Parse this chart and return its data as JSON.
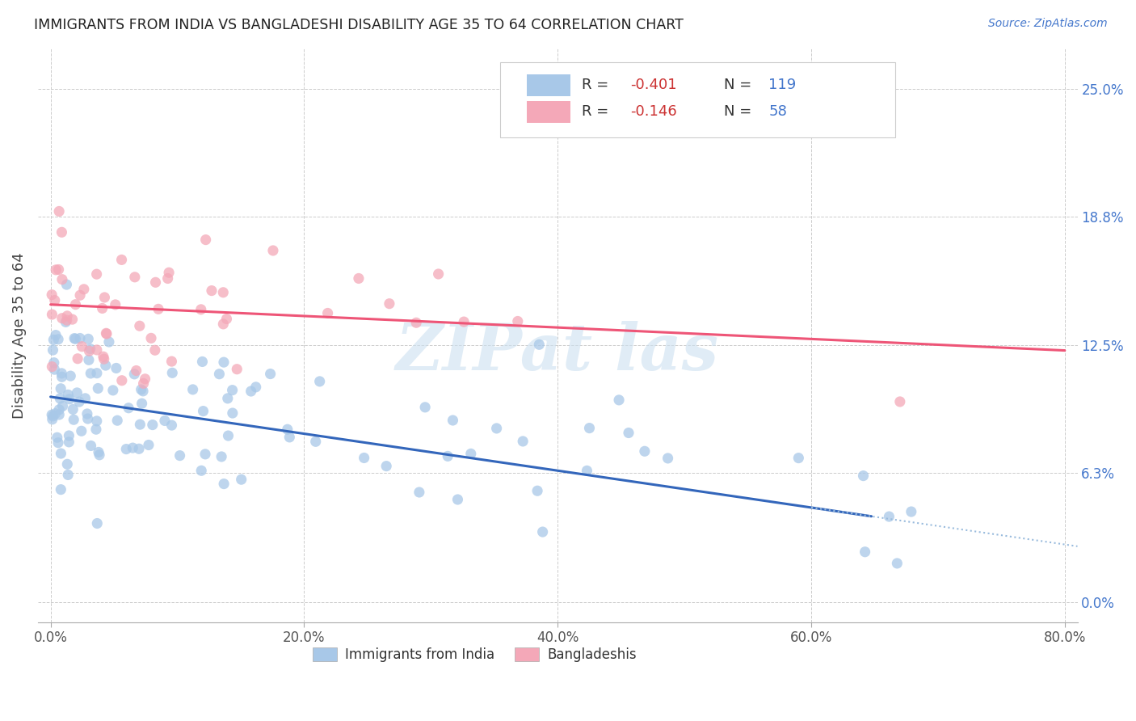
{
  "title": "IMMIGRANTS FROM INDIA VS BANGLADESHI DISABILITY AGE 35 TO 64 CORRELATION CHART",
  "source": "Source: ZipAtlas.com",
  "ylabel_label": "Disability Age 35 to 64",
  "legend_label1": "Immigrants from India",
  "legend_label2": "Bangladeshis",
  "legend_R1": "-0.401",
  "legend_N1": "119",
  "legend_R2": "-0.146",
  "legend_N2": "58",
  "color_india": "#a8c8e8",
  "color_bang": "#f4a8b8",
  "color_india_line": "#3366bb",
  "color_bang_line": "#ee5577",
  "color_dash_line": "#99bbdd",
  "background": "#ffffff",
  "x_ticks": [
    0,
    20,
    40,
    60,
    80
  ],
  "y_ticks": [
    0.0,
    6.3,
    12.5,
    18.8,
    25.0
  ],
  "xlim": [
    -1,
    81
  ],
  "ylim": [
    -1.0,
    27.0
  ],
  "india_reg_int": 10.0,
  "india_reg_slope": -0.09,
  "bang_reg_int": 14.5,
  "bang_reg_slope": -0.028,
  "watermark_text": "ZIPat las",
  "watermark_color": "#cce0f0",
  "watermark_alpha": 0.6,
  "dot_size": 90,
  "dot_alpha": 0.75
}
